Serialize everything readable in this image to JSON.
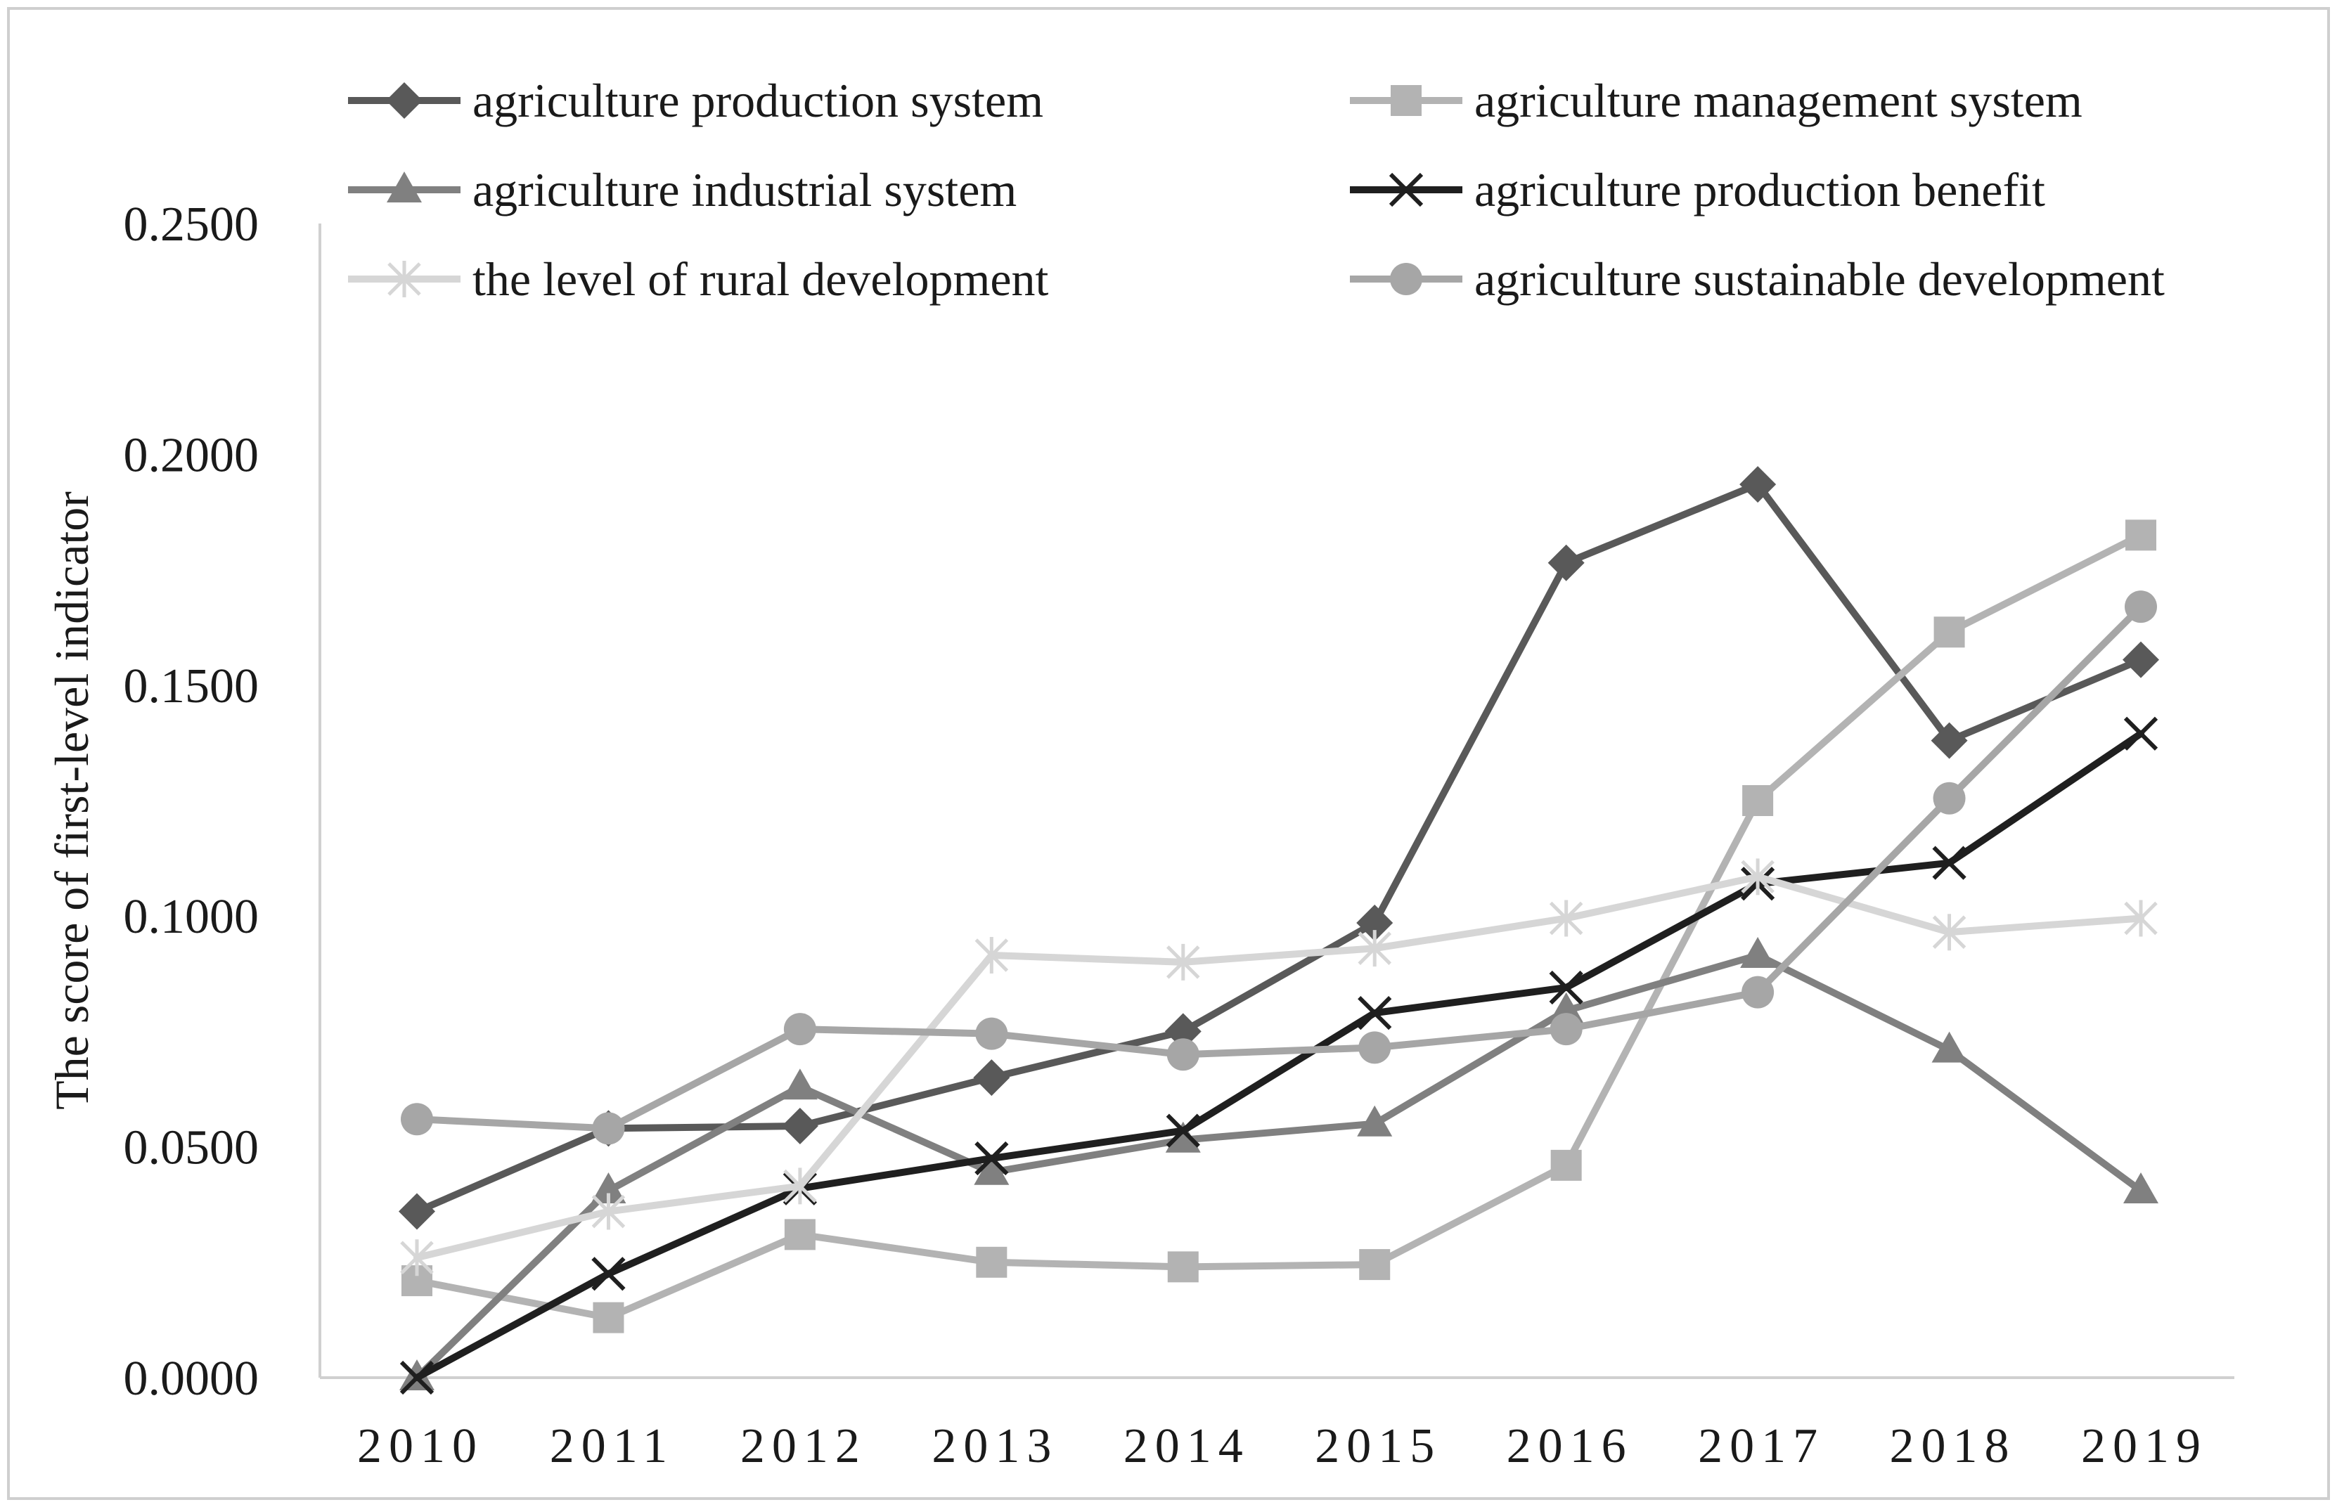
{
  "chart_data": {
    "type": "line",
    "title": "",
    "xlabel": "",
    "ylabel": "The score of first-level indicator",
    "ylim": [
      0,
      0.25
    ],
    "yticks": [
      "0.0000",
      "0.0500",
      "0.1000",
      "0.1500",
      "0.2000",
      "0.2500"
    ],
    "ytick_values": [
      0,
      0.05,
      0.1,
      0.15,
      0.2,
      0.25
    ],
    "categories": [
      "2010",
      "2011",
      "2012",
      "2013",
      "2014",
      "2015",
      "2016",
      "2017",
      "2018",
      "2019"
    ],
    "legend_position": "top",
    "grid": false,
    "series": [
      {
        "name": "agriculture production system",
        "color": "#595959",
        "marker": "diamond",
        "values": [
          0.036,
          0.054,
          0.0545,
          0.065,
          0.075,
          0.0985,
          0.1765,
          0.1935,
          0.138,
          0.1555
        ]
      },
      {
        "name": "agriculture management system",
        "color": "#b3b3b3",
        "marker": "square",
        "values": [
          0.021,
          0.013,
          0.031,
          0.025,
          0.024,
          0.0245,
          0.046,
          0.125,
          0.1615,
          0.1825
        ]
      },
      {
        "name": "agriculture industrial system",
        "color": "#808080",
        "marker": "triangle",
        "values": [
          0.0,
          0.0405,
          0.063,
          0.0445,
          0.0515,
          0.055,
          0.0795,
          0.0915,
          0.071,
          0.0405
        ]
      },
      {
        "name": "agriculture production benefit",
        "color": "#1f1f1f",
        "marker": "x",
        "values": [
          0.0,
          0.0225,
          0.041,
          0.0475,
          0.0535,
          0.079,
          0.0845,
          0.107,
          0.1115,
          0.1395
        ]
      },
      {
        "name": "the level of rural development",
        "color": "#d6d6d6",
        "marker": "star",
        "values": [
          0.026,
          0.036,
          0.0415,
          0.0915,
          0.09,
          0.093,
          0.0995,
          0.1085,
          0.0965,
          0.0995
        ]
      },
      {
        "name": "agriculture sustainable development",
        "color": "#a6a6a6",
        "marker": "circle",
        "values": [
          0.056,
          0.054,
          0.0755,
          0.0745,
          0.07,
          0.0715,
          0.0755,
          0.0835,
          0.1255,
          0.167
        ]
      }
    ]
  }
}
